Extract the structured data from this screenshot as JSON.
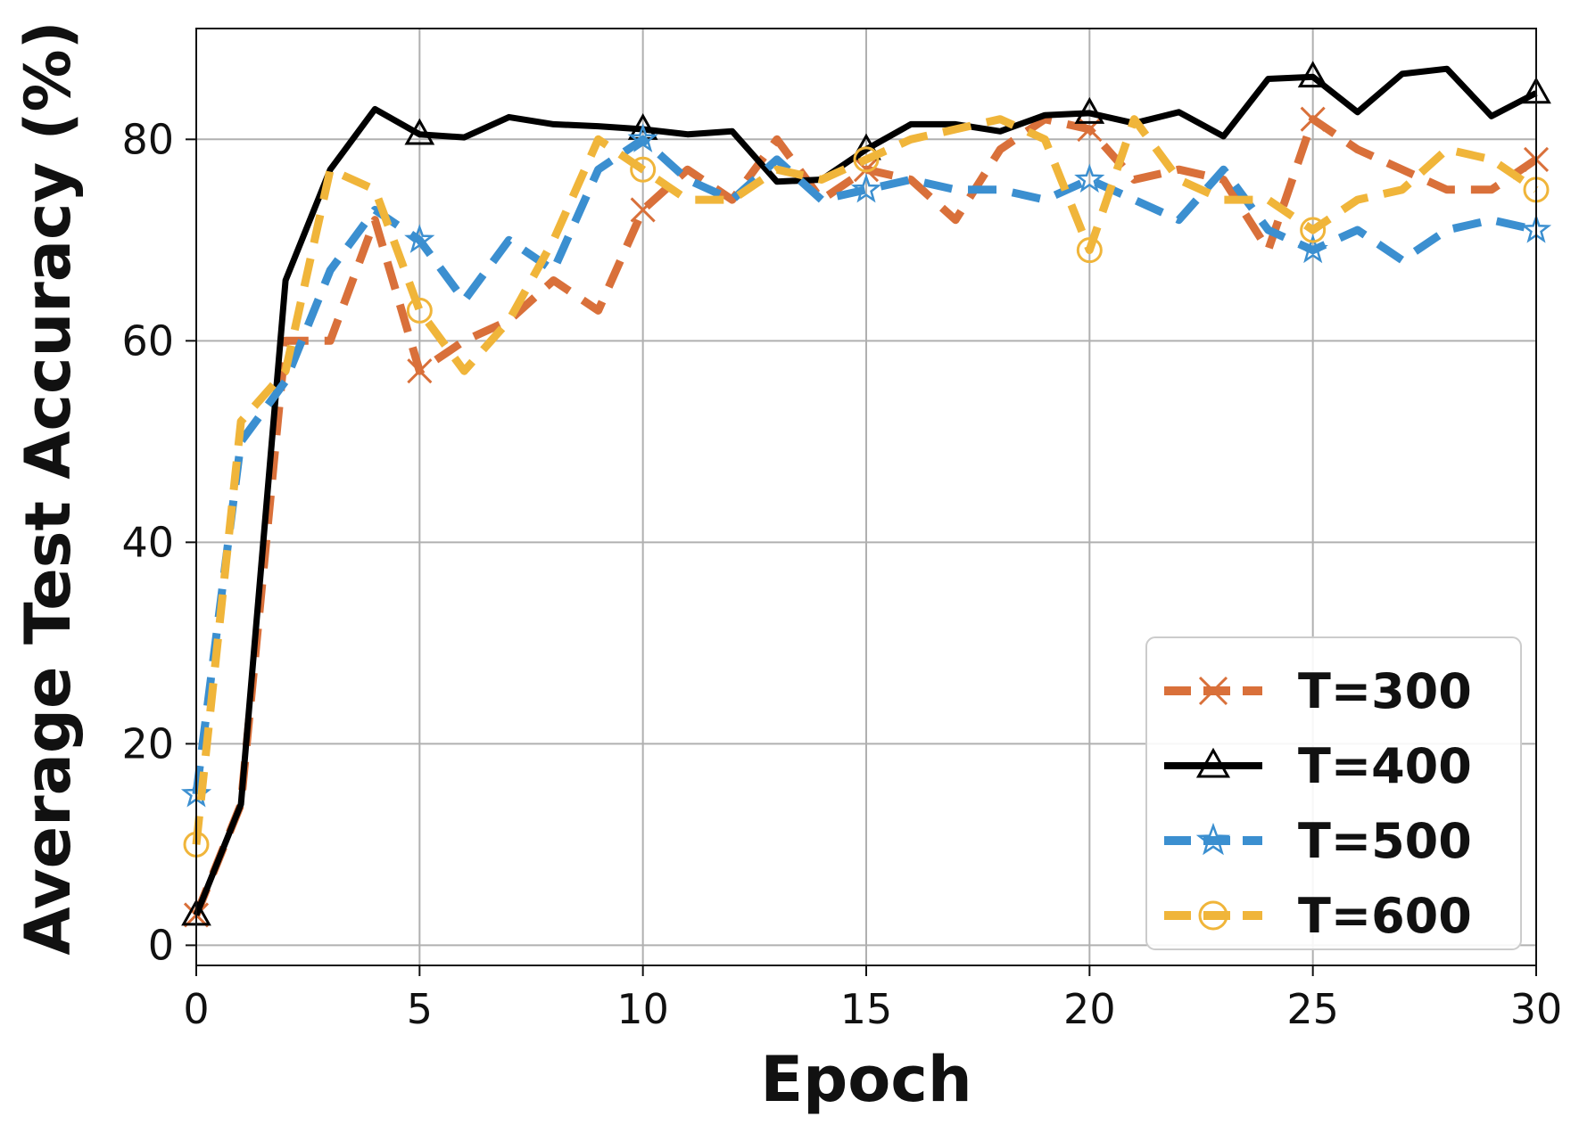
{
  "chart_data": {
    "type": "line",
    "xlabel": "Epoch",
    "ylabel": "Average Test Accuracy (%)",
    "xlim": [
      0,
      30
    ],
    "ylim": [
      -2,
      91
    ],
    "xticks": [
      0,
      5,
      10,
      15,
      20,
      25,
      30
    ],
    "yticks": [
      0,
      20,
      40,
      60,
      80
    ],
    "grid": true,
    "legend_position": "lower-right",
    "x": [
      0,
      1,
      2,
      3,
      4,
      5,
      6,
      7,
      8,
      9,
      10,
      11,
      12,
      13,
      14,
      15,
      16,
      17,
      18,
      19,
      20,
      21,
      22,
      23,
      24,
      25,
      26,
      27,
      28,
      29,
      30
    ],
    "series": [
      {
        "name": "T=300",
        "color": "#d9703a",
        "line_style": "dashed",
        "marker": "x",
        "values": [
          3,
          14,
          60,
          60,
          72,
          57,
          60,
          62,
          66,
          63,
          73,
          77,
          74,
          80,
          74,
          77,
          76,
          72,
          79,
          82,
          81,
          76,
          77,
          76,
          69,
          82,
          79,
          77,
          75,
          75,
          78
        ]
      },
      {
        "name": "T=400",
        "color": "#000000",
        "line_style": "solid",
        "marker": "triangle",
        "values": [
          3,
          14,
          66,
          77,
          83,
          80.5,
          80.2,
          82.2,
          81.5,
          81.3,
          81,
          80.5,
          80.8,
          75.8,
          76,
          79,
          81.5,
          81.5,
          80.8,
          82.4,
          82.6,
          81.6,
          82.7,
          80.3,
          86,
          86.2,
          82.7,
          86.5,
          87,
          82.3,
          84.6
        ]
      },
      {
        "name": "T=500",
        "color": "#3b8fd0",
        "line_style": "dashed",
        "marker": "star",
        "values": [
          15,
          50,
          56,
          67,
          73,
          70,
          64,
          70,
          67,
          77,
          80,
          76,
          74,
          78,
          74,
          75,
          76,
          75,
          75,
          74,
          76,
          74,
          72,
          77,
          71,
          69,
          71,
          68,
          71,
          72,
          71
        ]
      },
      {
        "name": "T=600",
        "color": "#f0b53a",
        "line_style": "dashed",
        "marker": "circle",
        "values": [
          10,
          52,
          57,
          77,
          75,
          63,
          57,
          62,
          70,
          80,
          77,
          74,
          74,
          77,
          76,
          78,
          80,
          81,
          82,
          80,
          69,
          82,
          76,
          74,
          74,
          71,
          74,
          75,
          79,
          78,
          75
        ]
      }
    ]
  }
}
